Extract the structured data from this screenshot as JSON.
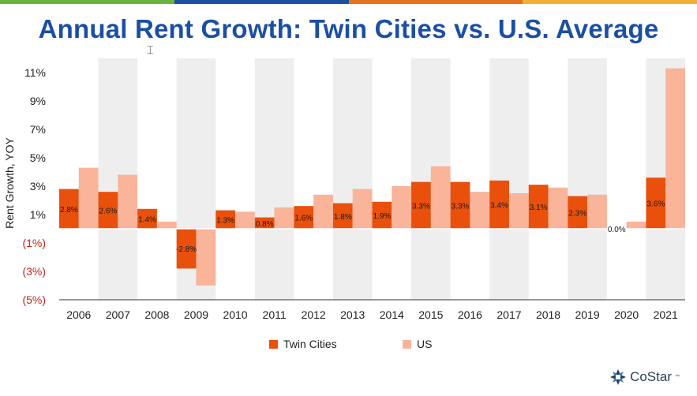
{
  "title": "Annual Rent Growth: Twin Cities vs. U.S. Average",
  "logo_text": "CoStar",
  "logo_mark": "™",
  "colors": {
    "top_bar": [
      "#6db33f",
      "#1a4fa3",
      "#e8731e",
      "#f2b134"
    ],
    "title": "#1a4fa3",
    "twin_cities": "#e8500c",
    "us": "#f9b49a",
    "negative_tick": "#c0261c",
    "shade": "#eeeeee"
  },
  "chart_data": {
    "type": "bar",
    "title": "Annual Rent Growth: Twin Cities vs. U.S. Average",
    "ylabel": "Rent Growth, YOY",
    "xlabel": "",
    "ylim": [
      -5,
      11
    ],
    "yticks": [
      {
        "value": 11,
        "label": "11%"
      },
      {
        "value": 9,
        "label": "9%"
      },
      {
        "value": 7,
        "label": "7%"
      },
      {
        "value": 5,
        "label": "5%"
      },
      {
        "value": 3,
        "label": "3%"
      },
      {
        "value": 1,
        "label": "1%"
      },
      {
        "value": -1,
        "label": "(1%)"
      },
      {
        "value": -3,
        "label": "(3%)"
      },
      {
        "value": -5,
        "label": "(5%)"
      }
    ],
    "categories": [
      "2006",
      "2007",
      "2008",
      "2009",
      "2010",
      "2011",
      "2012",
      "2013",
      "2014",
      "2015",
      "2016",
      "2017",
      "2018",
      "2019",
      "2020",
      "2021"
    ],
    "shaded_years": [
      "2007",
      "2009",
      "2011",
      "2013",
      "2015",
      "2017",
      "2019",
      "2021"
    ],
    "series": [
      {
        "name": "Twin Cities",
        "values": [
          2.8,
          2.6,
          1.4,
          -2.8,
          1.3,
          0.8,
          1.6,
          1.8,
          1.9,
          3.3,
          3.3,
          3.4,
          3.1,
          2.3,
          0.0,
          3.6
        ],
        "labels": [
          "2.8%",
          "2.6%",
          "1.4%",
          "-2.8%",
          "1.3%",
          "0.8%",
          "1.6%",
          "1.8%",
          "1.9%",
          "3.3%",
          "3.3%",
          "3.4%",
          "3.1%",
          "2.3%",
          "0.0%",
          "3.6%"
        ]
      },
      {
        "name": "US",
        "values": [
          4.3,
          3.8,
          0.5,
          -4.0,
          1.2,
          1.5,
          2.4,
          2.8,
          3.0,
          4.4,
          2.6,
          2.5,
          2.9,
          2.4,
          0.5,
          11.3
        ]
      }
    ],
    "legend_position": "bottom",
    "grid": false
  }
}
